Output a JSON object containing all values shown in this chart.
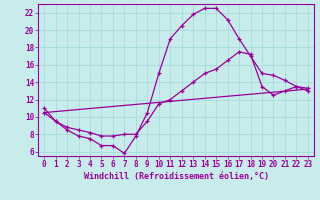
{
  "bg_color": "#c8ecec",
  "line_color": "#990099",
  "grid_color": "#aadddd",
  "xlabel": "Windchill (Refroidissement éolien,°C)",
  "xlim": [
    -0.5,
    23.5
  ],
  "ylim": [
    5.5,
    23
  ],
  "yticks": [
    6,
    8,
    10,
    12,
    14,
    16,
    18,
    20,
    22
  ],
  "xticks": [
    0,
    1,
    2,
    3,
    4,
    5,
    6,
    7,
    8,
    9,
    10,
    11,
    12,
    13,
    14,
    15,
    16,
    17,
    18,
    19,
    20,
    21,
    22,
    23
  ],
  "curve1_x": [
    0,
    1,
    2,
    3,
    4,
    5,
    6,
    7,
    8,
    9,
    10,
    11,
    12,
    13,
    14,
    15,
    16,
    17,
    18,
    19,
    20,
    21,
    22,
    23
  ],
  "curve1_y": [
    11,
    9.5,
    8.5,
    7.8,
    7.5,
    6.7,
    6.7,
    5.8,
    7.8,
    10.5,
    15,
    19.0,
    20.5,
    21.8,
    22.5,
    22.5,
    21.2,
    19.0,
    17.0,
    15.0,
    14.8,
    14.2,
    13.5,
    13.0
  ],
  "curve2_x": [
    0,
    1,
    2,
    3,
    4,
    5,
    6,
    7,
    8,
    9,
    10,
    11,
    12,
    13,
    14,
    15,
    16,
    17,
    18,
    19,
    20,
    21,
    22,
    23
  ],
  "curve2_y": [
    10.5,
    9.5,
    8.8,
    8.5,
    8.2,
    7.8,
    7.8,
    8.0,
    8.0,
    9.5,
    11.5,
    12.0,
    13.0,
    14.0,
    15.0,
    15.5,
    16.5,
    17.5,
    17.2,
    13.5,
    12.5,
    13.0,
    13.5,
    13.3
  ],
  "curve3_x": [
    0,
    23
  ],
  "curve3_y": [
    10.5,
    13.2
  ],
  "font_color": "#990099",
  "tick_fontsize": 5.5,
  "xlabel_fontsize": 6.0
}
